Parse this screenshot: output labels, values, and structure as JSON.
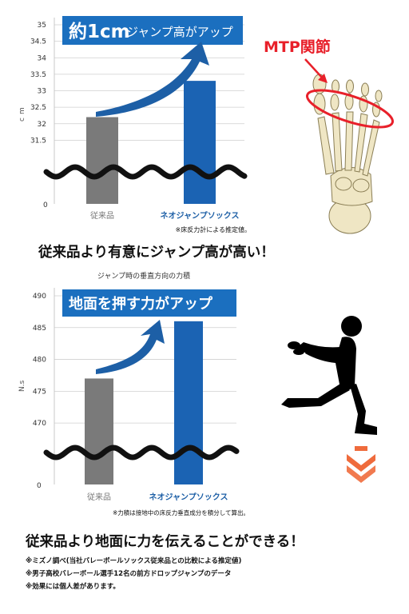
{
  "colors": {
    "grey_bar": "#7a7a7a",
    "blue_bar": "#1b63b3",
    "banner": "#1b6fbf",
    "arrow": "#1d5fa6",
    "red": "#e8202a",
    "orange": "#ef6b3c",
    "grid": "#cfcfcf",
    "text_blue": "#1d5fa6"
  },
  "chart1": {
    "banner_big": "約1cm",
    "banner_small": "ジャンプ高がアップ",
    "ylabel": "cm",
    "note": "※床反力計による推定値。"
  },
  "chart2": {
    "title": "ジャンプ時の垂直方向の力積",
    "banner": "地面を押す力がアップ",
    "ylabel": "N.s",
    "note": "※力積は接地中の床反力垂直成分を積分して算出。"
  },
  "chart_data": [
    {
      "type": "bar",
      "title": "",
      "xlabel": "",
      "ylabel": "cm",
      "categories": [
        "従来品",
        "ネオジャンプソックス"
      ],
      "values": [
        32.2,
        33.3
      ],
      "ylim": [
        31.0,
        35
      ],
      "axis_break": true,
      "y_ticks": [
        "31.5",
        "32",
        "32.5",
        "33",
        "33.5",
        "34",
        "34.5",
        "35"
      ],
      "zero_label": "0",
      "grid": true
    },
    {
      "type": "bar",
      "title": "ジャンプ時の垂直方向の力積",
      "xlabel": "",
      "ylabel": "N.s",
      "categories": [
        "従来品",
        "ネオジャンプソックス"
      ],
      "values": [
        477,
        486
      ],
      "ylim": [
        467,
        490
      ],
      "axis_break": true,
      "y_ticks": [
        "470",
        "475",
        "480",
        "485",
        "490"
      ],
      "zero_label": "0",
      "grid": true
    }
  ],
  "foot_label": "MTP関節",
  "headline1": "従来品より有意にジャンプ高が高い！",
  "headline2": "従来品より地面に力を伝えることができる！",
  "footnotes": [
    "※ミズノ調べ(当社バレーボールソックス従来品との比較による推定値)",
    "※男子高校バレーボール選手12名の前方ドロップジャンプのデータ",
    "※効果には個人差があります。"
  ]
}
